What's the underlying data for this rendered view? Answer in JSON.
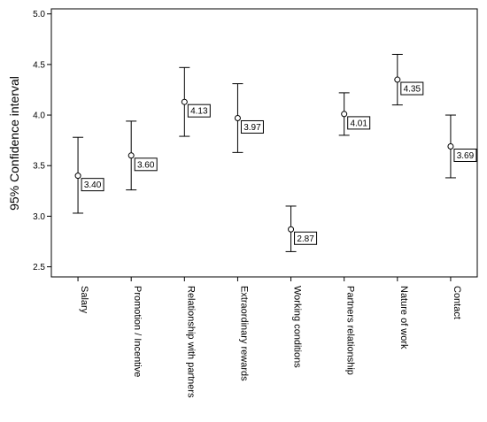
{
  "chart_data": {
    "type": "errorbar",
    "title": "",
    "xlabel": "",
    "ylabel": "95% Confidence interval",
    "ylim": [
      2.4,
      5.05
    ],
    "yticks": [
      2.5,
      3.0,
      3.5,
      4.0,
      4.5,
      5.0
    ],
    "ytick_labels": [
      "2.5",
      "3.0",
      "3.5",
      "4.0",
      "4.5",
      "5.0"
    ],
    "categories": [
      "Salary",
      "Promotion / Incentive",
      "Relationship with partners",
      "Extraordinary rewards",
      "Working conditions",
      "Partners relationship",
      "Nature of work",
      "Contact"
    ],
    "means": [
      3.4,
      3.6,
      4.13,
      3.97,
      2.87,
      4.01,
      4.35,
      3.69
    ],
    "mean_labels": [
      "3.40",
      "3.60",
      "4.13",
      "3.97",
      "2.87",
      "4.01",
      "4.35",
      "3.69"
    ],
    "lower": [
      3.03,
      3.26,
      3.79,
      3.63,
      2.65,
      3.8,
      4.1,
      3.38
    ],
    "upper": [
      3.78,
      3.94,
      4.47,
      4.31,
      3.1,
      4.22,
      4.6,
      4.0
    ],
    "grid": false,
    "legend": "none"
  }
}
